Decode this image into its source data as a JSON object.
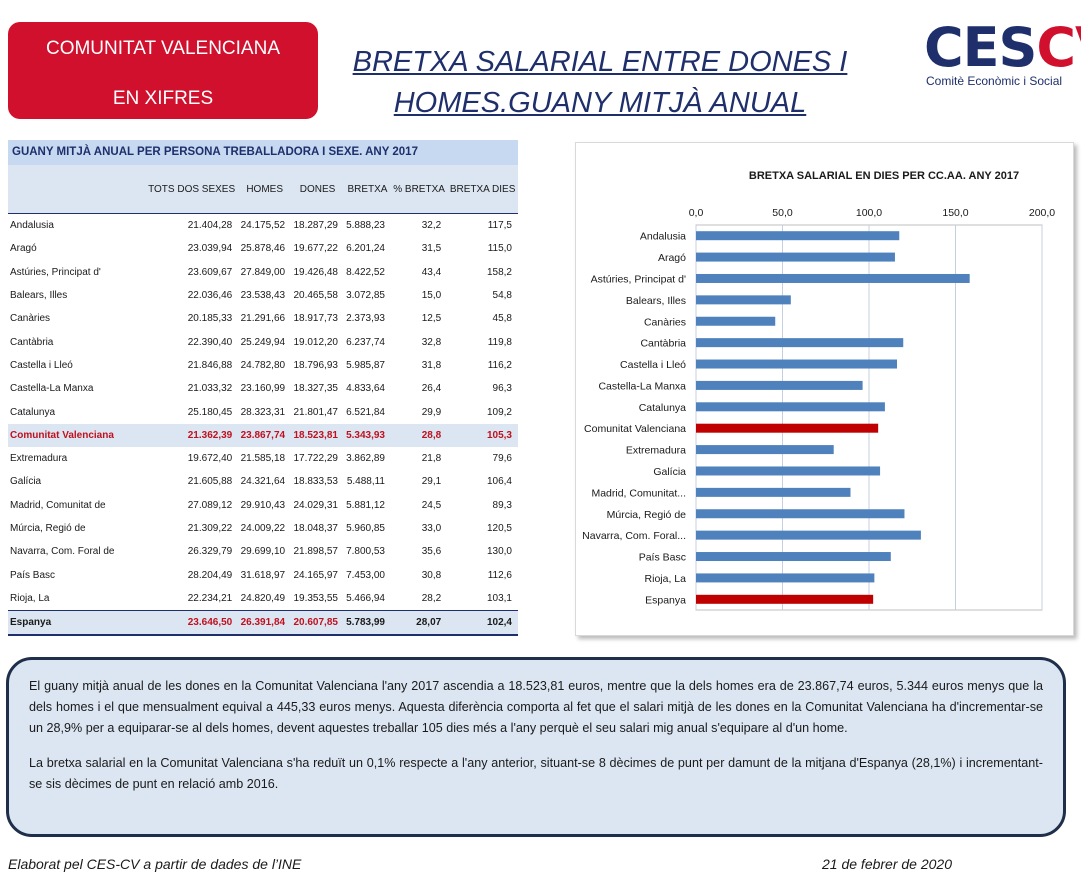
{
  "badge": {
    "line1": "COMUNITAT VALENCIANA",
    "line2": "EN XIFRES"
  },
  "title": {
    "line1": "BRETXA SALARIAL ENTRE DONES I",
    "line2": "HOMES.GUANY MITJÀ ANUAL"
  },
  "logo": {
    "mark_a": "CES",
    "mark_b": "CV",
    "subtitle": "Comitè Econòmic i Social"
  },
  "table": {
    "title": "GUANY MITJÀ ANUAL PER PERSONA TREBALLADORA I SEXE. ANY 2017",
    "headers": [
      "",
      "TOTS DOS SEXES",
      "HOMES",
      "DONES",
      "BRETXA",
      "% BRETXA",
      "BRETXA DIES"
    ],
    "rows": [
      [
        "Andalusia",
        "21.404,28",
        "24.175,52",
        "18.287,29",
        "5.888,23",
        "32,2",
        "117,5"
      ],
      [
        "Aragó",
        "23.039,94",
        "25.878,46",
        "19.677,22",
        "6.201,24",
        "31,5",
        "115,0"
      ],
      [
        "Astúries, Principat d'",
        "23.609,67",
        "27.849,00",
        "19.426,48",
        "8.422,52",
        "43,4",
        "158,2"
      ],
      [
        "Balears, Illes",
        "22.036,46",
        "23.538,43",
        "20.465,58",
        "3.072,85",
        "15,0",
        "54,8"
      ],
      [
        "Canàries",
        "20.185,33",
        "21.291,66",
        "18.917,73",
        "2.373,93",
        "12,5",
        "45,8"
      ],
      [
        "Cantàbria",
        "22.390,40",
        "25.249,94",
        "19.012,20",
        "6.237,74",
        "32,8",
        "119,8"
      ],
      [
        "Castella  i Lleó",
        "21.846,88",
        "24.782,80",
        "18.796,93",
        "5.985,87",
        "31,8",
        "116,2"
      ],
      [
        "Castella-La Manxa",
        "21.033,32",
        "23.160,99",
        "18.327,35",
        "4.833,64",
        "26,4",
        "96,3"
      ],
      [
        "Catalunya",
        "25.180,45",
        "28.323,31",
        "21.801,47",
        "6.521,84",
        "29,9",
        "109,2"
      ],
      [
        "Comunitat Valenciana",
        "21.362,39",
        "23.867,74",
        "18.523,81",
        "5.343,93",
        "28,8",
        "105,3"
      ],
      [
        "Extremadura",
        "19.672,40",
        "21.585,18",
        "17.722,29",
        "3.862,89",
        "21,8",
        "79,6"
      ],
      [
        "Galícia",
        "21.605,88",
        "24.321,64",
        "18.833,53",
        "5.488,11",
        "29,1",
        "106,4"
      ],
      [
        "Madrid, Comunitat de",
        "27.089,12",
        "29.910,43",
        "24.029,31",
        "5.881,12",
        "24,5",
        "89,3"
      ],
      [
        "Múrcia, Regió de",
        "21.309,22",
        "24.009,22",
        "18.048,37",
        "5.960,85",
        "33,0",
        "120,5"
      ],
      [
        "Navarra, Com. Foral de",
        "26.329,79",
        "29.699,10",
        "21.898,57",
        "7.800,53",
        "35,6",
        "130,0"
      ],
      [
        "País Basc",
        "28.204,49",
        "31.618,97",
        "24.165,97",
        "7.453,00",
        "30,8",
        "112,6"
      ],
      [
        "Rioja, La",
        "22.234,21",
        "24.820,49",
        "19.353,55",
        "5.466,94",
        "28,2",
        "103,1"
      ],
      [
        "Espanya",
        "23.646,50",
        "26.391,84",
        "20.607,85",
        "5.783,99",
        "28,07",
        "102,4"
      ]
    ]
  },
  "chart_data": {
    "type": "bar",
    "orientation": "horizontal",
    "title": "BRETXA SALARIAL  EN DIES PER CC.AA.  ANY 2017",
    "categories": [
      "Andalusia",
      "Aragó",
      "Astúries, Principat d'",
      "Balears, Illes",
      "Canàries",
      "Cantàbria",
      "Castella  i Lleó",
      "Castella-La Manxa",
      "Catalunya",
      "Comunitat Valenciana",
      "Extremadura",
      "Galícia",
      "Madrid, Comunitat...",
      "Múrcia, Regió de",
      "Navarra, Com. Foral...",
      "País Basc",
      "Rioja, La",
      "Espanya"
    ],
    "values": [
      117.5,
      115.0,
      158.2,
      54.8,
      45.8,
      119.8,
      116.2,
      96.3,
      109.2,
      105.3,
      79.6,
      106.4,
      89.3,
      120.5,
      130.0,
      112.6,
      103.1,
      102.4
    ],
    "highlight": [
      "Comunitat Valenciana",
      "Espanya"
    ],
    "xlim": [
      0,
      200
    ],
    "xticks": [
      "0,0",
      "50,0",
      "100,0",
      "150,0",
      "200,0"
    ],
    "tick_values": [
      0,
      50,
      100,
      150,
      200
    ],
    "grid": true,
    "colors": {
      "default": "#4f81bd",
      "highlight": "#c00000"
    }
  },
  "text": {
    "p1": "El guany mitjà anual de les dones en la Comunitat Valenciana l'any 2017 ascendia a 18.523,81 euros, mentre que la dels homes era de 23.867,74 euros, 5.344 euros menys que la dels homes i el que mensualment equival a 445,33 euros menys. Aquesta diferència comporta al fet que el salari mitjà de les dones en la Comunitat Valenciana ha d'incrementar-se un 28,9% per a equiparar-se al dels homes, devent aquestes treballar 105 dies més a l'any perquè el seu salari mig anual s'equipare al d'un home.",
    "p2": "La bretxa salarial en la Comunitat Valenciana s'ha reduït un 0,1% respecte a l'any anterior, situant-se 8 dècimes de punt per damunt de la mitjana d'Espanya (28,1%) i incrementant-se sis dècimes de punt en relació amb 2016."
  },
  "footer": {
    "source": "Elaborat pel CES-CV a partir de dades de l’INE",
    "date": "21 de febrer de 2020"
  }
}
